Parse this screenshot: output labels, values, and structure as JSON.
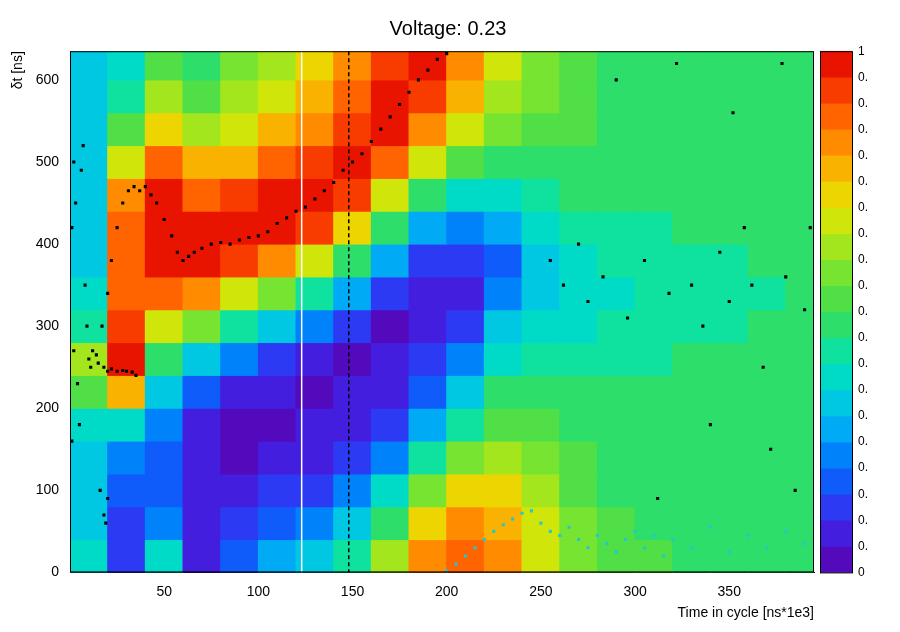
{
  "chart_data": {
    "type": "heatmap",
    "title": "Voltage: 0.23",
    "x_label": "Time in cycle [ns*1e3]",
    "y_label": "δt [ns]",
    "xlim": [
      0,
      395
    ],
    "ylim": [
      0,
      635
    ],
    "xticks": [
      50,
      100,
      150,
      200,
      250,
      300,
      350
    ],
    "yticks": [
      0,
      100,
      200,
      300,
      400,
      500,
      600
    ],
    "grid": false,
    "x_bins": [
      0,
      20,
      40,
      60,
      80,
      100,
      120,
      140,
      160,
      180,
      200,
      220,
      240,
      260,
      280,
      300,
      320,
      340,
      360,
      380,
      400
    ],
    "y_bins": [
      0,
      40,
      80,
      120,
      160,
      200,
      240,
      280,
      320,
      360,
      400,
      440,
      480,
      520,
      560,
      600,
      640
    ],
    "z": [
      [
        0.35,
        0.12,
        0.35,
        0.08,
        0.15,
        0.25,
        0.32,
        0.42,
        0.6,
        0.8,
        0.88,
        0.8,
        0.68,
        0.58,
        0.52,
        0.5,
        0.48,
        0.47,
        0.46,
        0.46
      ],
      [
        0.3,
        0.12,
        0.2,
        0.05,
        0.1,
        0.15,
        0.22,
        0.32,
        0.48,
        0.7,
        0.82,
        0.78,
        0.65,
        0.55,
        0.5,
        0.48,
        0.47,
        0.47,
        0.46,
        0.46
      ],
      [
        0.3,
        0.15,
        0.15,
        0.05,
        0.06,
        0.1,
        0.14,
        0.22,
        0.35,
        0.55,
        0.7,
        0.7,
        0.6,
        0.52,
        0.48,
        0.47,
        0.47,
        0.46,
        0.46,
        0.46
      ],
      [
        0.3,
        0.2,
        0.15,
        0.05,
        0.04,
        0.06,
        0.08,
        0.14,
        0.22,
        0.4,
        0.55,
        0.6,
        0.55,
        0.5,
        0.47,
        0.47,
        0.46,
        0.46,
        0.46,
        0.45
      ],
      [
        0.35,
        0.35,
        0.2,
        0.08,
        0.04,
        0.04,
        0.05,
        0.08,
        0.14,
        0.28,
        0.42,
        0.52,
        0.5,
        0.48,
        0.46,
        0.46,
        0.46,
        0.46,
        0.46,
        0.45
      ],
      [
        0.5,
        0.75,
        0.3,
        0.15,
        0.08,
        0.05,
        0.04,
        0.05,
        0.08,
        0.18,
        0.3,
        0.45,
        0.45,
        0.45,
        0.45,
        0.45,
        0.45,
        0.46,
        0.45,
        0.45
      ],
      [
        0.6,
        0.95,
        0.45,
        0.3,
        0.2,
        0.12,
        0.08,
        0.04,
        0.05,
        0.1,
        0.2,
        0.38,
        0.4,
        0.42,
        0.43,
        0.44,
        0.45,
        0.45,
        0.45,
        0.45
      ],
      [
        0.4,
        0.9,
        0.65,
        0.55,
        0.4,
        0.3,
        0.2,
        0.1,
        0.04,
        0.05,
        0.12,
        0.3,
        0.35,
        0.38,
        0.4,
        0.42,
        0.43,
        0.44,
        0.45,
        0.45
      ],
      [
        0.35,
        0.88,
        0.85,
        0.8,
        0.65,
        0.55,
        0.4,
        0.25,
        0.1,
        0.05,
        0.08,
        0.22,
        0.32,
        0.36,
        0.38,
        0.4,
        0.42,
        0.43,
        0.44,
        0.45
      ],
      [
        0.3,
        0.85,
        0.95,
        0.97,
        0.9,
        0.82,
        0.68,
        0.45,
        0.25,
        0.12,
        0.1,
        0.18,
        0.32,
        0.37,
        0.4,
        0.42,
        0.43,
        0.44,
        0.45,
        0.45
      ],
      [
        0.3,
        0.85,
        0.97,
        0.95,
        0.97,
        0.97,
        0.9,
        0.7,
        0.45,
        0.28,
        0.2,
        0.25,
        0.36,
        0.4,
        0.42,
        0.44,
        0.45,
        0.45,
        0.45,
        0.45
      ],
      [
        0.3,
        0.8,
        0.95,
        0.88,
        0.9,
        0.95,
        0.97,
        0.9,
        0.68,
        0.45,
        0.35,
        0.35,
        0.42,
        0.45,
        0.45,
        0.46,
        0.46,
        0.46,
        0.46,
        0.45
      ],
      [
        0.3,
        0.65,
        0.85,
        0.75,
        0.78,
        0.85,
        0.9,
        0.97,
        0.85,
        0.65,
        0.5,
        0.45,
        0.48,
        0.48,
        0.47,
        0.47,
        0.47,
        0.46,
        0.46,
        0.46
      ],
      [
        0.3,
        0.5,
        0.72,
        0.62,
        0.68,
        0.75,
        0.82,
        0.92,
        0.95,
        0.82,
        0.65,
        0.55,
        0.52,
        0.5,
        0.48,
        0.48,
        0.47,
        0.47,
        0.46,
        0.46
      ],
      [
        0.3,
        0.4,
        0.6,
        0.52,
        0.6,
        0.68,
        0.75,
        0.85,
        0.97,
        0.92,
        0.75,
        0.62,
        0.55,
        0.5,
        0.48,
        0.47,
        0.47,
        0.46,
        0.46,
        0.46
      ],
      [
        0.3,
        0.35,
        0.5,
        0.45,
        0.55,
        0.62,
        0.7,
        0.8,
        0.92,
        0.97,
        0.82,
        0.65,
        0.55,
        0.5,
        0.48,
        0.47,
        0.46,
        0.46,
        0.46,
        0.45
      ]
    ],
    "zlim": [
      0,
      1
    ],
    "zticks": [
      0,
      {
        "value": 0.05,
        "label": "0."
      },
      {
        "value": 0.1,
        "label": "0."
      },
      {
        "value": 0.15,
        "label": "0."
      },
      {
        "value": 0.2,
        "label": "0."
      },
      {
        "value": 0.25,
        "label": "0."
      },
      {
        "value": 0.3,
        "label": "0."
      },
      {
        "value": 0.35,
        "label": "0."
      },
      {
        "value": 0.4,
        "label": "0."
      },
      {
        "value": 0.45,
        "label": "0."
      },
      {
        "value": 0.5,
        "label": "0."
      },
      {
        "value": 0.55,
        "label": "0."
      },
      {
        "value": 0.6,
        "label": "0."
      },
      {
        "value": 0.65,
        "label": "0."
      },
      {
        "value": 0.7,
        "label": "0."
      },
      {
        "value": 0.75,
        "label": "0."
      },
      {
        "value": 0.8,
        "label": "0."
      },
      {
        "value": 0.85,
        "label": "0."
      },
      {
        "value": 0.9,
        "label": "0."
      },
      {
        "value": 0.95,
        "label": "0."
      },
      1
    ],
    "vlines": [
      {
        "x": 123,
        "color": "#ffffff",
        "line_style": "solid"
      },
      {
        "x": 148,
        "color": "#000000",
        "line_style": "dashed"
      }
    ],
    "series": [
      {
        "type": "scatter",
        "marker": "square",
        "color": "#000000",
        "x": [
          1,
          1,
          2,
          3,
          2,
          4,
          5,
          6,
          7,
          8,
          9,
          10,
          11,
          12,
          14,
          16,
          18,
          19,
          20,
          15,
          18,
          20,
          22,
          25,
          28,
          30,
          33,
          35,
          17,
          20,
          22,
          25,
          28,
          31,
          34,
          37,
          40,
          43,
          46,
          50,
          54,
          57,
          60,
          63,
          66,
          70,
          75,
          80,
          85,
          90,
          95,
          100,
          105,
          110,
          115,
          120,
          125,
          130,
          135,
          140,
          145,
          150,
          155,
          160,
          165,
          170,
          175,
          180,
          185,
          190,
          195,
          200,
          255,
          262,
          270,
          275,
          283,
          290,
          296,
          305,
          312,
          318,
          322,
          330,
          336,
          340,
          345,
          350,
          352,
          358,
          362,
          368,
          372,
          378,
          380,
          385,
          390,
          393
        ],
        "y": [
          160,
          420,
          500,
          450,
          270,
          230,
          180,
          490,
          520,
          350,
          300,
          260,
          250,
          270,
          265,
          100,
          70,
          60,
          90,
          255,
          250,
          245,
          248,
          245,
          246,
          245,
          244,
          240,
          300,
          340,
          380,
          420,
          450,
          465,
          470,
          465,
          470,
          460,
          450,
          430,
          410,
          390,
          380,
          385,
          390,
          395,
          400,
          402,
          400,
          405,
          408,
          410,
          415,
          425,
          432,
          440,
          445,
          455,
          465,
          475,
          490,
          500,
          510,
          525,
          540,
          555,
          570,
          585,
          600,
          612,
          625,
          632,
          380,
          350,
          400,
          330,
          360,
          600,
          310,
          380,
          90,
          340,
          620,
          350,
          300,
          180,
          390,
          330,
          560,
          420,
          350,
          250,
          150,
          620,
          360,
          100,
          320,
          420
        ]
      },
      {
        "type": "scatter",
        "marker": "square",
        "color": "#22c8d0",
        "x": [
          200,
          205,
          210,
          215,
          220,
          225,
          230,
          235,
          240,
          245,
          250,
          255,
          260,
          265,
          270,
          275,
          280,
          285,
          290,
          295,
          300,
          305,
          310,
          315,
          320,
          330,
          340,
          350,
          360,
          370,
          380,
          390
        ],
        "y": [
          2,
          10,
          20,
          30,
          40,
          50,
          58,
          65,
          72,
          75,
          60,
          50,
          45,
          55,
          40,
          30,
          45,
          35,
          25,
          40,
          50,
          30,
          45,
          20,
          40,
          30,
          55,
          25,
          45,
          30,
          50,
          35
        ]
      }
    ]
  }
}
